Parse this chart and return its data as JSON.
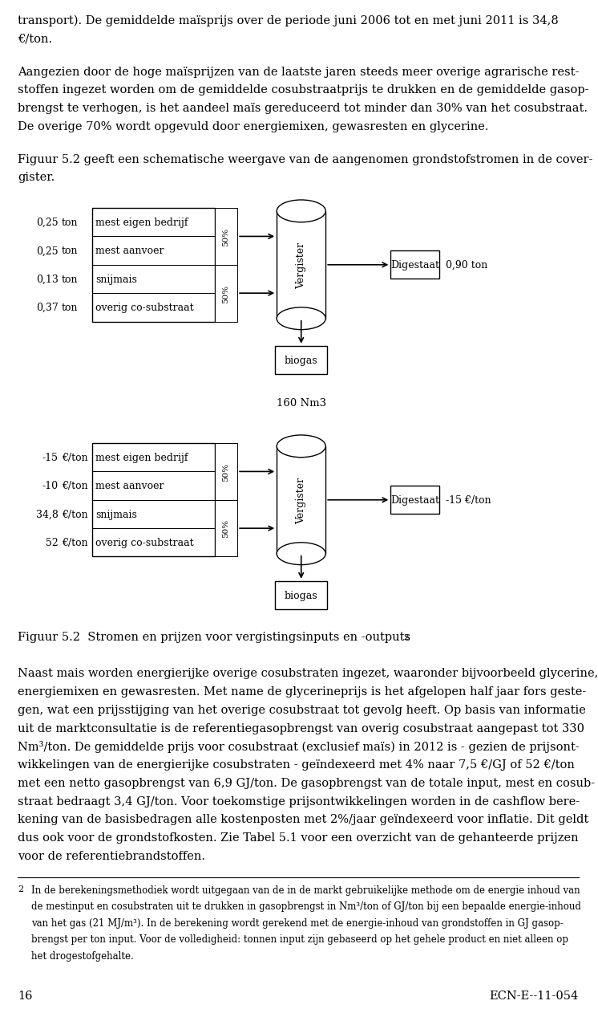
{
  "page_width": 9.6,
  "page_height": 16.4,
  "bg_color": "#ffffff",
  "text_color": "#000000",
  "font_size_body": 10.5,
  "font_size_small": 9.0,
  "font_size_caption": 10.0,
  "diagram1": {
    "rows": [
      {
        "amount": "0,25",
        "unit": "ton",
        "label": "mest eigen bedrijf",
        "pct_group": 1
      },
      {
        "amount": "0,25",
        "unit": "ton",
        "label": "mest aanvoer",
        "pct_group": 1
      },
      {
        "amount": "0,13",
        "unit": "ton",
        "label": "snijmais",
        "pct_group": 2
      },
      {
        "amount": "0,37",
        "unit": "ton",
        "label": "overig co-substraat",
        "pct_group": 2
      }
    ],
    "pct_labels": [
      "50%",
      "50%"
    ],
    "vergister_label": "Vergister",
    "digestaat_label": "Digestaat",
    "digestaat_value": "0,90 ton",
    "biogas_label": "biogas",
    "biogas_value": "160 Nm3"
  },
  "diagram2": {
    "rows": [
      {
        "amount": "-15",
        "unit": "€/ton",
        "label": "mest eigen bedrijf",
        "pct_group": 1
      },
      {
        "amount": "-10",
        "unit": "€/ton",
        "label": "mest aanvoer",
        "pct_group": 1
      },
      {
        "amount": "34,8",
        "unit": "€/ton",
        "label": "snijmais",
        "pct_group": 2
      },
      {
        "amount": "52",
        "unit": "€/ton",
        "label": "overig co-substraat",
        "pct_group": 2
      }
    ],
    "pct_labels": [
      "50%",
      "50%"
    ],
    "vergister_label": "Vergister",
    "digestaat_label": "Digestaat",
    "digestaat_value": "-15 €/ton",
    "biogas_label": "biogas"
  },
  "figure_caption": "Figuur 5.2  Stromen en prijzen voor vergistingsinputs en -outputs",
  "figure_caption_superscript": "2",
  "footnote_number": "2",
  "page_number": "16",
  "page_ecn": "ECN-E--11-054"
}
